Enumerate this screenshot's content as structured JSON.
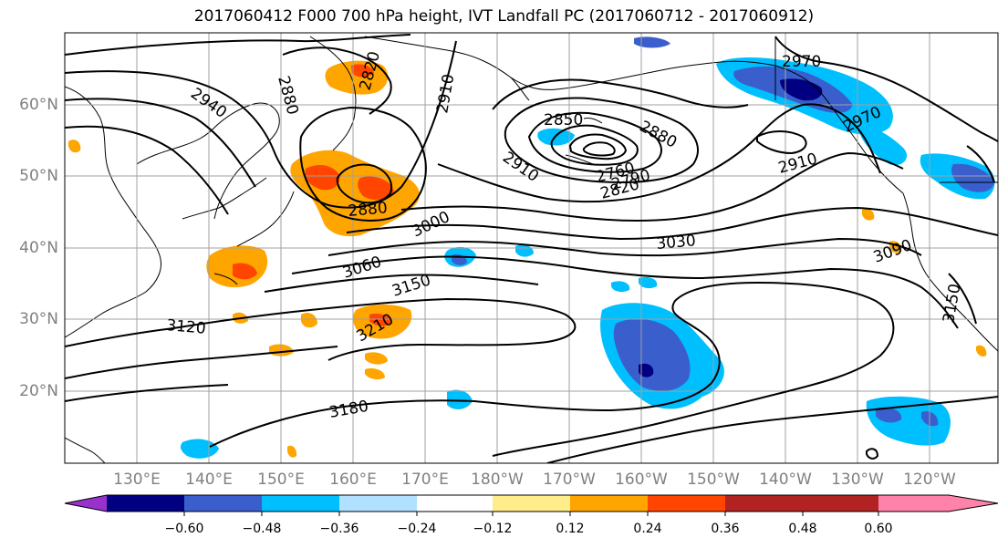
{
  "title": "2017060412 F000 700 hPa height, IVT Landfall PC (2017060712 - 2017060912)",
  "lat_labels": [
    "60°N",
    "50°N",
    "40°N",
    "30°N",
    "20°N"
  ],
  "lon_labels": [
    "130°E",
    "140°E",
    "150°E",
    "160°E",
    "170°E",
    "180°W",
    "170°W",
    "160°W",
    "150°W",
    "140°W",
    "130°W",
    "120°W"
  ],
  "contour_labels": [
    "2940",
    "2880",
    "2820",
    "2910",
    "2850",
    "2880",
    "2970",
    "2970",
    "2910",
    "2910",
    "2760",
    "2790",
    "2820",
    "2880",
    "3000",
    "3030",
    "3060",
    "3090",
    "3150",
    "3150",
    "3120",
    "3210",
    "3180"
  ],
  "colorbar": {
    "colors": [
      "#9932CC",
      "#000080",
      "#3A5FCD",
      "#00BFFF",
      "#B0E2FF",
      "#FFFFFF",
      "#FFEC8B",
      "#FFA500",
      "#FF4500",
      "#B22222",
      "#FF82AB"
    ],
    "tick_labels": [
      "−0.60",
      "−0.48",
      "−0.36",
      "−0.24",
      "−0.12",
      "0.12",
      "0.24",
      "0.36",
      "0.48",
      "0.60"
    ]
  }
}
